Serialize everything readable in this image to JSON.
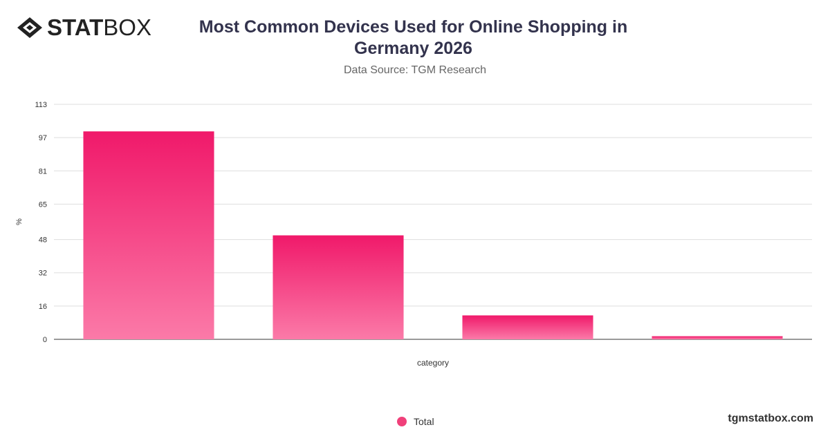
{
  "brand": {
    "logo_bold": "STAT",
    "logo_light": "BOX",
    "website": "tgmstatbox.com"
  },
  "header": {
    "title": "Most Common Devices Used for Online Shopping in Germany 2026",
    "subtitle": "Data Source: TGM Research"
  },
  "colors": {
    "bar_top": "#f0196a",
    "bar_bottom": "#fb7aa8",
    "grid": "#dddddd",
    "axis": "#333333"
  },
  "chart_data": {
    "type": "bar",
    "title": "Most Common Devices Used for Online Shopping in Germany 2026",
    "subtitle": "Data Source: TGM Research",
    "xlabel": "category",
    "ylabel": "%",
    "yticks": [
      0,
      16,
      32,
      48,
      65,
      81,
      97,
      113
    ],
    "ylim": [
      0,
      113
    ],
    "grid": true,
    "legend_position": "bottom",
    "categories": [
      "",
      "",
      "",
      ""
    ],
    "series": [
      {
        "name": "Total",
        "values": [
          100,
          50,
          11.5,
          1.5
        ]
      }
    ]
  },
  "legend": {
    "label": "Total"
  }
}
